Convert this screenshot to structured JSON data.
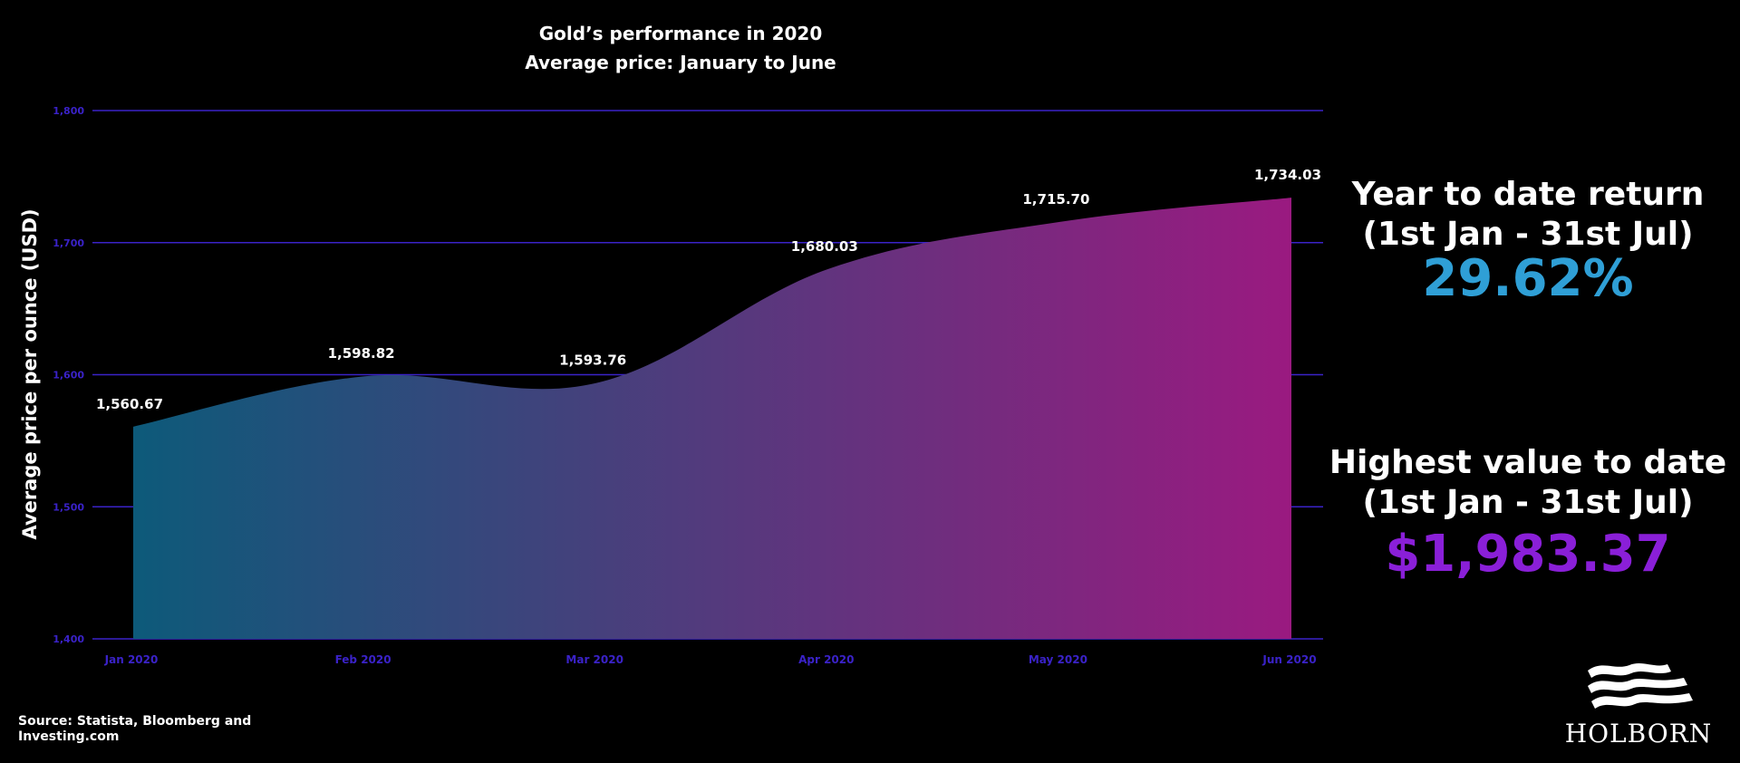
{
  "colors": {
    "background": "#000000",
    "gridline": "#3a22c8",
    "tick_text": "#3a22c8",
    "area_gradient_start": "#0d5a7a",
    "area_gradient_end": "#9a1a80",
    "ytd_return": "#2f9fd6",
    "highest_value": "#8a1fd8"
  },
  "chart_data": {
    "type": "area",
    "title_lines": [
      "Gold’s performance in 2020",
      "Average price: January to June"
    ],
    "ylabel": "Average price per ounce (USD)",
    "xlabel": "",
    "categories": [
      "Jan 2020",
      "Feb 2020",
      "Mar 2020",
      "Apr 2020",
      "May 2020",
      "Jun 2020"
    ],
    "values": [
      1560.67,
      1598.82,
      1593.76,
      1680.03,
      1715.7,
      1734.03
    ],
    "data_labels": [
      "1,560.67",
      "1,598.82",
      "1,593.76",
      "1,680.03",
      "1,715.70",
      "1,734.03"
    ],
    "ylim": [
      1400,
      1800
    ],
    "yticks": [
      1400,
      1500,
      1600,
      1700,
      1800
    ],
    "ytick_labels": [
      "1,400",
      "1,500",
      "1,600",
      "1,700",
      "1,800"
    ],
    "grid": true,
    "legend": "none"
  },
  "stats": {
    "ytd": {
      "heading_line1": "Year to date return",
      "heading_line2": "(1st Jan - 31st Jul)",
      "value": "29.62%"
    },
    "highest": {
      "heading_line1": "Highest value to date",
      "heading_line2": "(1st Jan - 31st Jul)",
      "value": "$1,983.37"
    }
  },
  "source": {
    "line1": "Source: Statista, Bloomberg and",
    "line2": "Investing.com"
  },
  "brand": {
    "icon": "waves-logo-icon",
    "name": "HOLBORN"
  }
}
